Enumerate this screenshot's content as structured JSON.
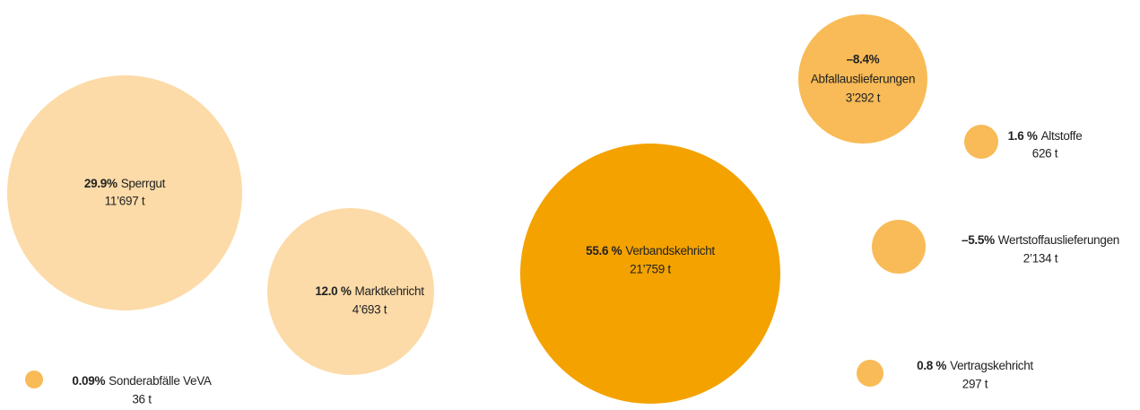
{
  "chart_data": {
    "type": "bubble",
    "items": [
      {
        "name": "Sperrgut",
        "percent": 29.9,
        "percent_label": "29.9%",
        "value": 11697,
        "value_label": "11’697 t",
        "color": "#fcdba8"
      },
      {
        "name": "Marktkehricht",
        "percent": 12.0,
        "percent_label": "12.0 %",
        "value": 4693,
        "value_label": "4’693 t",
        "color": "#fcdba8"
      },
      {
        "name": "Verbandskehricht",
        "percent": 55.6,
        "percent_label": "55.6 %",
        "value": 21759,
        "value_label": "21’759 t",
        "color": "#f4a200"
      },
      {
        "name": "Abfallauslieferungen",
        "percent": -8.4,
        "percent_label": "–8.4%",
        "value": 3292,
        "value_label": "3’292 t",
        "color": "#f8bb57"
      },
      {
        "name": "Altstoffe",
        "percent": 1.6,
        "percent_label": "1.6 %",
        "value": 626,
        "value_label": "626 t",
        "color": "#f8bb57"
      },
      {
        "name": "Wertstoffauslieferungen",
        "percent": -5.5,
        "percent_label": "–5.5%",
        "value": 2134,
        "value_label": "2’134 t",
        "color": "#f8bb57"
      },
      {
        "name": "Vertragskehricht",
        "percent": 0.8,
        "percent_label": "0.8 %",
        "value": 297,
        "value_label": "297 t",
        "color": "#f8bb57"
      },
      {
        "name": "Sonderabfälle VeVA",
        "percent": 0.09,
        "percent_label": "0.09%",
        "value": 36,
        "value_label": "36 t",
        "color": "#f8bb57"
      }
    ]
  }
}
